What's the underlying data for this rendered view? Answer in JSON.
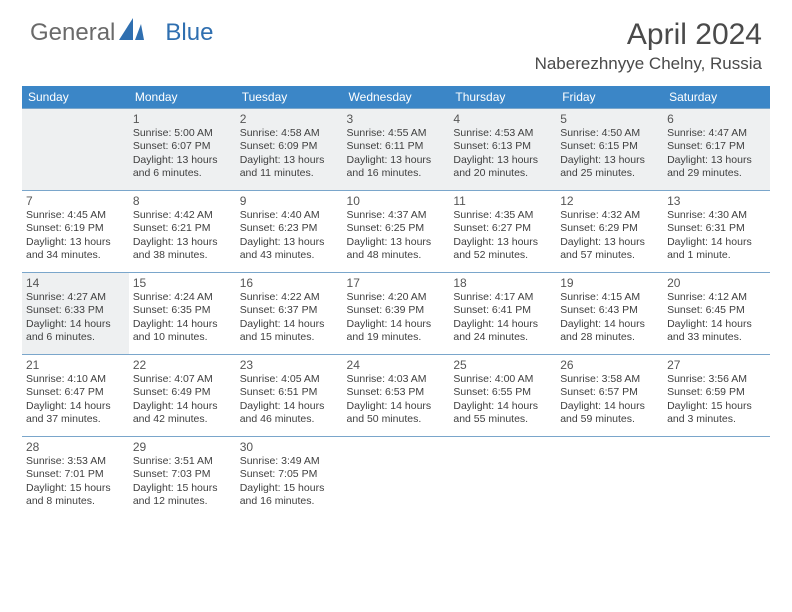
{
  "logo": {
    "part1": "General",
    "part2": "Blue"
  },
  "title": "April 2024",
  "subtitle": "Naberezhnyye Chelny, Russia",
  "colors": {
    "header_bg": "#3b86c7",
    "header_text": "#ffffff",
    "row_border": "#7aa6cb",
    "shaded_bg": "#eef0f1",
    "body_text": "#3f3f3f",
    "daynum_text": "#555555",
    "logo_gray": "#6a6a6a",
    "logo_blue": "#2f6fb0"
  },
  "days_of_week": [
    "Sunday",
    "Monday",
    "Tuesday",
    "Wednesday",
    "Thursday",
    "Friday",
    "Saturday"
  ],
  "weeks": [
    [
      null,
      {
        "n": "1",
        "sr": "Sunrise: 5:00 AM",
        "ss": "Sunset: 6:07 PM",
        "dl": "Daylight: 13 hours and 6 minutes."
      },
      {
        "n": "2",
        "sr": "Sunrise: 4:58 AM",
        "ss": "Sunset: 6:09 PM",
        "dl": "Daylight: 13 hours and 11 minutes."
      },
      {
        "n": "3",
        "sr": "Sunrise: 4:55 AM",
        "ss": "Sunset: 6:11 PM",
        "dl": "Daylight: 13 hours and 16 minutes."
      },
      {
        "n": "4",
        "sr": "Sunrise: 4:53 AM",
        "ss": "Sunset: 6:13 PM",
        "dl": "Daylight: 13 hours and 20 minutes."
      },
      {
        "n": "5",
        "sr": "Sunrise: 4:50 AM",
        "ss": "Sunset: 6:15 PM",
        "dl": "Daylight: 13 hours and 25 minutes."
      },
      {
        "n": "6",
        "sr": "Sunrise: 4:47 AM",
        "ss": "Sunset: 6:17 PM",
        "dl": "Daylight: 13 hours and 29 minutes."
      }
    ],
    [
      {
        "n": "7",
        "sr": "Sunrise: 4:45 AM",
        "ss": "Sunset: 6:19 PM",
        "dl": "Daylight: 13 hours and 34 minutes."
      },
      {
        "n": "8",
        "sr": "Sunrise: 4:42 AM",
        "ss": "Sunset: 6:21 PM",
        "dl": "Daylight: 13 hours and 38 minutes."
      },
      {
        "n": "9",
        "sr": "Sunrise: 4:40 AM",
        "ss": "Sunset: 6:23 PM",
        "dl": "Daylight: 13 hours and 43 minutes."
      },
      {
        "n": "10",
        "sr": "Sunrise: 4:37 AM",
        "ss": "Sunset: 6:25 PM",
        "dl": "Daylight: 13 hours and 48 minutes."
      },
      {
        "n": "11",
        "sr": "Sunrise: 4:35 AM",
        "ss": "Sunset: 6:27 PM",
        "dl": "Daylight: 13 hours and 52 minutes."
      },
      {
        "n": "12",
        "sr": "Sunrise: 4:32 AM",
        "ss": "Sunset: 6:29 PM",
        "dl": "Daylight: 13 hours and 57 minutes."
      },
      {
        "n": "13",
        "sr": "Sunrise: 4:30 AM",
        "ss": "Sunset: 6:31 PM",
        "dl": "Daylight: 14 hours and 1 minute."
      }
    ],
    [
      {
        "n": "14",
        "sr": "Sunrise: 4:27 AM",
        "ss": "Sunset: 6:33 PM",
        "dl": "Daylight: 14 hours and 6 minutes."
      },
      {
        "n": "15",
        "sr": "Sunrise: 4:24 AM",
        "ss": "Sunset: 6:35 PM",
        "dl": "Daylight: 14 hours and 10 minutes."
      },
      {
        "n": "16",
        "sr": "Sunrise: 4:22 AM",
        "ss": "Sunset: 6:37 PM",
        "dl": "Daylight: 14 hours and 15 minutes."
      },
      {
        "n": "17",
        "sr": "Sunrise: 4:20 AM",
        "ss": "Sunset: 6:39 PM",
        "dl": "Daylight: 14 hours and 19 minutes."
      },
      {
        "n": "18",
        "sr": "Sunrise: 4:17 AM",
        "ss": "Sunset: 6:41 PM",
        "dl": "Daylight: 14 hours and 24 minutes."
      },
      {
        "n": "19",
        "sr": "Sunrise: 4:15 AM",
        "ss": "Sunset: 6:43 PM",
        "dl": "Daylight: 14 hours and 28 minutes."
      },
      {
        "n": "20",
        "sr": "Sunrise: 4:12 AM",
        "ss": "Sunset: 6:45 PM",
        "dl": "Daylight: 14 hours and 33 minutes."
      }
    ],
    [
      {
        "n": "21",
        "sr": "Sunrise: 4:10 AM",
        "ss": "Sunset: 6:47 PM",
        "dl": "Daylight: 14 hours and 37 minutes."
      },
      {
        "n": "22",
        "sr": "Sunrise: 4:07 AM",
        "ss": "Sunset: 6:49 PM",
        "dl": "Daylight: 14 hours and 42 minutes."
      },
      {
        "n": "23",
        "sr": "Sunrise: 4:05 AM",
        "ss": "Sunset: 6:51 PM",
        "dl": "Daylight: 14 hours and 46 minutes."
      },
      {
        "n": "24",
        "sr": "Sunrise: 4:03 AM",
        "ss": "Sunset: 6:53 PM",
        "dl": "Daylight: 14 hours and 50 minutes."
      },
      {
        "n": "25",
        "sr": "Sunrise: 4:00 AM",
        "ss": "Sunset: 6:55 PM",
        "dl": "Daylight: 14 hours and 55 minutes."
      },
      {
        "n": "26",
        "sr": "Sunrise: 3:58 AM",
        "ss": "Sunset: 6:57 PM",
        "dl": "Daylight: 14 hours and 59 minutes."
      },
      {
        "n": "27",
        "sr": "Sunrise: 3:56 AM",
        "ss": "Sunset: 6:59 PM",
        "dl": "Daylight: 15 hours and 3 minutes."
      }
    ],
    [
      {
        "n": "28",
        "sr": "Sunrise: 3:53 AM",
        "ss": "Sunset: 7:01 PM",
        "dl": "Daylight: 15 hours and 8 minutes."
      },
      {
        "n": "29",
        "sr": "Sunrise: 3:51 AM",
        "ss": "Sunset: 7:03 PM",
        "dl": "Daylight: 15 hours and 12 minutes."
      },
      {
        "n": "30",
        "sr": "Sunrise: 3:49 AM",
        "ss": "Sunset: 7:05 PM",
        "dl": "Daylight: 15 hours and 16 minutes."
      },
      null,
      null,
      null,
      null
    ]
  ]
}
